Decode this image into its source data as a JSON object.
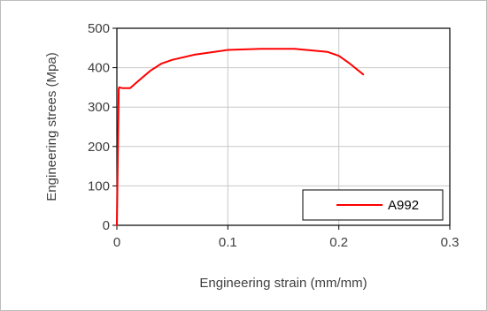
{
  "chart_data": {
    "type": "line",
    "title": "",
    "xlabel": "Engineering strain (mm/mm)",
    "ylabel": "Engineering strees (Mpa)",
    "xlim": [
      0,
      0.3
    ],
    "ylim": [
      0,
      500
    ],
    "x_ticks": [
      "0",
      "0.1",
      "0.2",
      "0.3"
    ],
    "y_ticks": [
      "0",
      "100",
      "200",
      "300",
      "400",
      "500"
    ],
    "grid": true,
    "legend_position": "bottom-right",
    "series": [
      {
        "name": "A992",
        "color": "#ff0000",
        "x": [
          0,
          0.0017,
          0.002,
          0.005,
          0.012,
          0.02,
          0.03,
          0.04,
          0.05,
          0.07,
          0.1,
          0.13,
          0.16,
          0.19,
          0.2,
          0.21,
          0.222
        ],
        "y": [
          0,
          345,
          350,
          348,
          348,
          368,
          392,
          410,
          420,
          433,
          445,
          448,
          448,
          440,
          430,
          410,
          383
        ]
      }
    ]
  }
}
